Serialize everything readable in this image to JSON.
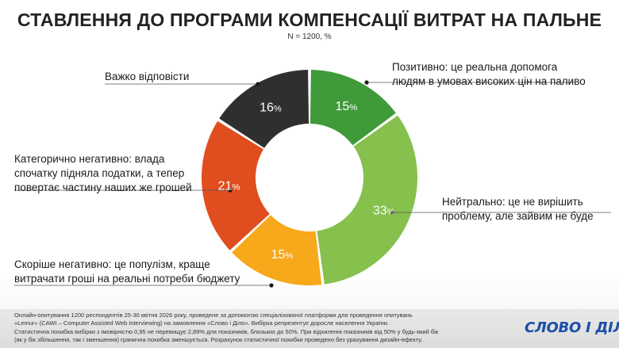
{
  "header": {
    "title": "СТАВЛЕННЯ ДО ПРОГРАМИ КОМПЕНСАЦІЇ ВИТРАТ НА ПАЛЬНЕ",
    "subtitle": "N = 1200, %"
  },
  "chart_data": {
    "type": "pie",
    "donut": true,
    "start": "top",
    "direction": "clockwise",
    "slices": [
      {
        "label": "Позитивно: це реальна допомога людям в умовах високих цін на паливо",
        "value": 15,
        "value_label": "15",
        "color": "#3f9a3a"
      },
      {
        "label": "Нейтрально: це не вирішить проблему, але зайвим не буде",
        "value": 33,
        "value_label": "33",
        "color": "#86c04d"
      },
      {
        "label": "Скоріше негативно: це популізм, краще витрачати гроші на реальні потреби бюджету",
        "value": 15,
        "value_label": "15",
        "color": "#f7a81b"
      },
      {
        "label": "Категорично негативно: влада спочатку підняла податки, а тепер повертає частину наших же грошей",
        "value": 21,
        "value_label": "21",
        "color": "#e04e1f"
      },
      {
        "label": "Важко відповісти",
        "value": 16,
        "value_label": "16",
        "color": "#2f2f2f"
      }
    ],
    "unit_suffix": "%"
  },
  "labels": {
    "positive_l1": "Позитивно: це реальна допомога",
    "positive_l2": "людям в умовах високих цін на паливо",
    "neutral_l1": "Нейтрально: це не вирішить",
    "neutral_l2": "проблему, але зайвим не буде",
    "rather_neg_l1": "Скоріше негативно: це популізм, краще",
    "rather_neg_l2": "витрачати гроші на реальні потреби бюджету",
    "categ_neg_l1": "Категорично негативно: влада",
    "categ_neg_l2": "спочатку підняла податки, а тепер",
    "categ_neg_l3": "повертає частину наших же грошей",
    "hard_l1": "Важко відповісти"
  },
  "footer": {
    "line1": "Онлайн-опитування 1200 респондентів 25-30 квітня 2026 року, проведене за допомогою спеціалізованої платформи для проведення опитувань",
    "line2": "«Lemur» (CAWI – Computer Assisted Web Interviewing) на замовлення «Слово і Діло». Вибірка репрезентує доросле населення України.",
    "line3": "Статистична похибка вибірки з імовірністю 0,95 не перевищує 2,89% для показників, близьких до 50%. При відхиленні показників від 50% у будь-який бік",
    "line4": "(як у бік збільшення, так і зменшення) гранична похибка зменшується. Розрахунок статистичної похибки проведено без урахування дизайн-ефекту."
  },
  "brand": {
    "logo_text": "СЛОВО І ДІЛО"
  }
}
